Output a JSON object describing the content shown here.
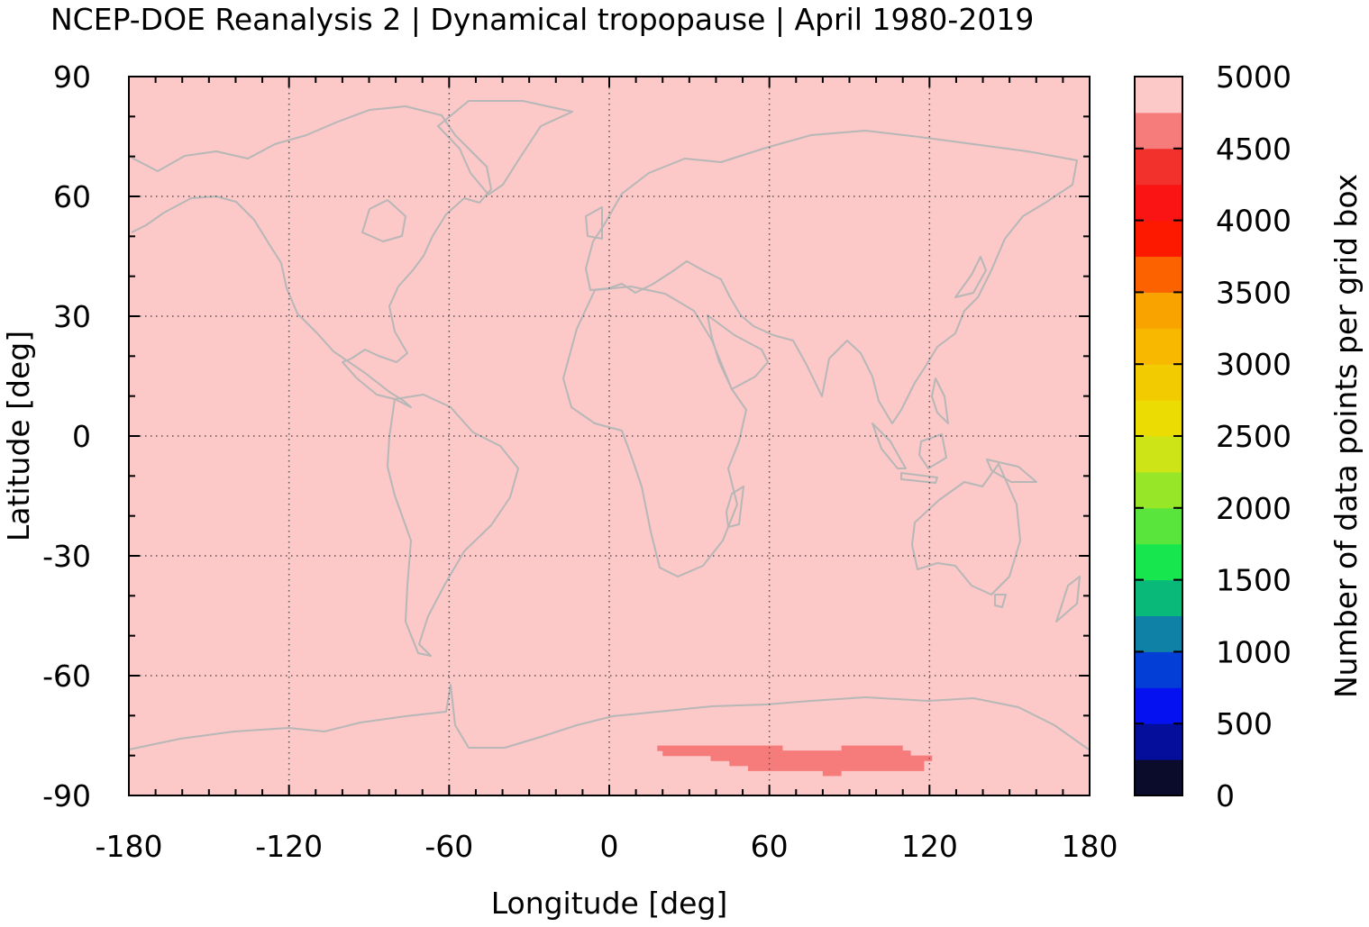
{
  "title": "NCEP-DOE Reanalysis 2 | Dynamical tropopause | April 1980-2019",
  "chart_data": {
    "type": "heatmap",
    "title": "NCEP-DOE Reanalysis 2 | Dynamical tropopause | April 1980-2019",
    "xlabel": "Longitude [deg]",
    "ylabel": "Latitude [deg]",
    "xlim": [
      -180,
      180
    ],
    "ylim": [
      -90,
      90
    ],
    "xticks": [
      "-180",
      "-120",
      "-60",
      "0",
      "60",
      "120",
      "180"
    ],
    "yticks": [
      "90",
      "60",
      "30",
      "0",
      "-30",
      "-60",
      "-90"
    ],
    "grid": true,
    "background_value_color": "#fcc8c8",
    "field_description": "nearly all grid boxes in top class (4750-5000); one region over East Antarctica in class 4500-4750",
    "low_region": {
      "value_class": [
        4500,
        4750
      ],
      "color": "#f67b7b",
      "rows": [
        {
          "lat": [
            -78.75,
            -77.5
          ],
          "lon": [
            18,
            65
          ]
        },
        {
          "lat": [
            -78.75,
            -77.5
          ],
          "lon": [
            87,
            110
          ]
        },
        {
          "lat": [
            -80,
            -78.75
          ],
          "lon": [
            20,
            113
          ]
        },
        {
          "lat": [
            -81.25,
            -80
          ],
          "lon": [
            38,
            121
          ]
        },
        {
          "lat": [
            -82.5,
            -81.25
          ],
          "lon": [
            45,
            118
          ]
        },
        {
          "lat": [
            -83.75,
            -82.5
          ],
          "lon": [
            52,
            118
          ]
        },
        {
          "lat": [
            -85,
            -83.75
          ],
          "lon": [
            80,
            87
          ]
        }
      ]
    },
    "colorbar": {
      "label": "Number of data points per grid box",
      "ticks": [
        "5000",
        "4500",
        "4000",
        "3500",
        "3000",
        "2500",
        "2000",
        "1500",
        "1000",
        "500",
        "0"
      ],
      "range": [
        0,
        5000
      ],
      "step": 250,
      "colors": [
        "#0b0b2b",
        "#050e9b",
        "#0511f0",
        "#033ed6",
        "#0f80a6",
        "#08b97a",
        "#18e64f",
        "#5ae53d",
        "#97e628",
        "#cde516",
        "#ebdc04",
        "#f2cb00",
        "#f8b800",
        "#f9a300",
        "#fd6200",
        "#fc1900",
        "#fa1414",
        "#f2302c",
        "#f67b7b",
        "#fcc8c8"
      ]
    }
  }
}
